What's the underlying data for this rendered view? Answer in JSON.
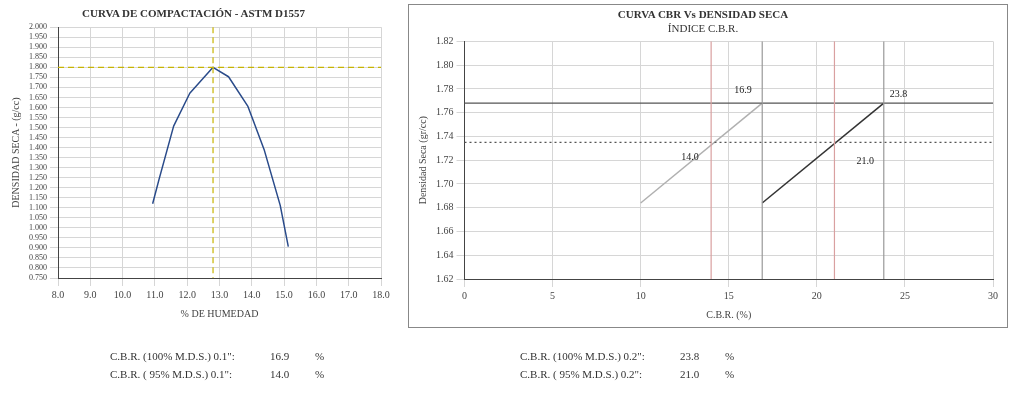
{
  "chart_data": [
    {
      "type": "line",
      "title": "CURVA DE COMPACTACIÓN - ASTM D1557",
      "xlabel": "% DE HUMEDAD",
      "ylabel": "DENSIDAD SECA - (g/cc)",
      "series": [
        {
          "color": "#2a4b8a",
          "x": [
            10.93,
            11.13,
            11.58,
            12.08,
            12.8,
            13.28,
            13.88,
            14.38,
            14.88,
            15.13
          ],
          "values": [
            1.12,
            1.243,
            1.507,
            1.671,
            1.8,
            1.753,
            1.605,
            1.391,
            1.112,
            0.906
          ]
        }
      ],
      "xlim": [
        8,
        18
      ],
      "xticks": [
        {
          "value": 8,
          "label": "8.0"
        },
        {
          "value": 9,
          "label": "9.0"
        },
        {
          "value": 10,
          "label": "10.0"
        },
        {
          "value": 11,
          "label": "11.0"
        },
        {
          "value": 12,
          "label": "12.0"
        },
        {
          "value": 13,
          "label": "13.0"
        },
        {
          "value": 14,
          "label": "14.0"
        },
        {
          "value": 15,
          "label": "15.0"
        },
        {
          "value": 16,
          "label": "16.0"
        },
        {
          "value": 17,
          "label": "17.0"
        },
        {
          "value": 18,
          "label": "18.0"
        }
      ],
      "ylim": [
        0.75,
        2.0
      ],
      "yticks": [
        {
          "value": 0.75,
          "label": "0.750"
        },
        {
          "value": 0.8,
          "label": "0.800"
        },
        {
          "value": 0.85,
          "label": "0.850"
        },
        {
          "value": 0.9,
          "label": "0.900"
        },
        {
          "value": 0.95,
          "label": "0.950"
        },
        {
          "value": 1.0,
          "label": "1.000"
        },
        {
          "value": 1.05,
          "label": "1.050"
        },
        {
          "value": 1.1,
          "label": "1.100"
        },
        {
          "value": 1.15,
          "label": "1.150"
        },
        {
          "value": 1.2,
          "label": "1.200"
        },
        {
          "value": 1.25,
          "label": "1.250"
        },
        {
          "value": 1.3,
          "label": "1.300"
        },
        {
          "value": 1.35,
          "label": "1.350"
        },
        {
          "value": 1.4,
          "label": "1.400"
        },
        {
          "value": 1.45,
          "label": "1.450"
        },
        {
          "value": 1.5,
          "label": "1.500"
        },
        {
          "value": 1.55,
          "label": "1.550"
        },
        {
          "value": 1.6,
          "label": "1.600"
        },
        {
          "value": 1.65,
          "label": "1.650"
        },
        {
          "value": 1.7,
          "label": "1.700"
        },
        {
          "value": 1.75,
          "label": "1.750"
        },
        {
          "value": 1.8,
          "label": "1.800"
        },
        {
          "value": 1.85,
          "label": "1.850"
        },
        {
          "value": 1.9,
          "label": "1.900"
        },
        {
          "value": 1.95,
          "label": "1.950"
        },
        {
          "value": 2.0,
          "label": "2.000"
        }
      ],
      "ref_lines": [
        {
          "axis": "x",
          "value": 12.8,
          "color": "#c8b400",
          "line_style": "dashed"
        },
        {
          "axis": "y",
          "value": 1.8,
          "color": "#c8b400",
          "line_style": "dashed"
        }
      ],
      "grid": true,
      "legend": false,
      "marker": "none",
      "line_style": "solid",
      "annotations": [
        "C.B.R. (100% M.D.S.) 0.1\":",
        "16.9",
        "%",
        "C.B.R. ( 95% M.D.S.) 0.1\":",
        "14.0",
        "%"
      ]
    },
    {
      "type": "line",
      "title": "CURVA CBR Vs DENSIDAD SECA",
      "subtitle": "ÍNDICE C.B.R.",
      "xlabel": "C.B.R. (%)",
      "ylabel": "Densidad Seca (gr/cc)",
      "series": [
        {
          "color": "#b0b0b0",
          "x": [
            10.0,
            16.9
          ],
          "values": [
            1.684,
            1.768
          ]
        },
        {
          "color": "#333333",
          "x": [
            16.9,
            23.8
          ],
          "values": [
            1.684,
            1.768
          ]
        }
      ],
      "xlim": [
        0,
        30
      ],
      "xticks": [
        0,
        5,
        10,
        15,
        20,
        25,
        30
      ],
      "ylim": [
        1.62,
        1.82
      ],
      "yticks": [
        {
          "value": 1.62,
          "label": "1.62"
        },
        {
          "value": 1.64,
          "label": "1.64"
        },
        {
          "value": 1.66,
          "label": "1.66"
        },
        {
          "value": 1.68,
          "label": "1.68"
        },
        {
          "value": 1.7,
          "label": "1.70"
        },
        {
          "value": 1.72,
          "label": "1.72"
        },
        {
          "value": 1.74,
          "label": "1.74"
        },
        {
          "value": 1.76,
          "label": "1.76"
        },
        {
          "value": 1.78,
          "label": "1.78"
        },
        {
          "value": 1.8,
          "label": "1.80"
        },
        {
          "value": 1.82,
          "label": "1.82"
        }
      ],
      "ref_lines": [
        {
          "axis": "y",
          "value": 1.768,
          "color": "#555555"
        },
        {
          "axis": "y",
          "value": 1.735,
          "color": "#555555",
          "line_style": "dotted"
        },
        {
          "axis": "x",
          "value": 14.0,
          "color": "#d9a0a0"
        },
        {
          "axis": "x",
          "value": 16.9,
          "color": "#999999"
        },
        {
          "axis": "x",
          "value": 21.0,
          "color": "#d9a0a0"
        },
        {
          "axis": "x",
          "value": 23.8,
          "color": "#999999"
        }
      ],
      "grid": true,
      "legend": false,
      "marker": "none",
      "line_style": "solid",
      "annotations": [
        {
          "text": "16.9",
          "x": 16.9,
          "y": 1.768
        },
        {
          "text": "23.8",
          "x": 23.8,
          "y": 1.768
        },
        {
          "text": "14.0",
          "x": 14.0,
          "y": 1.735
        },
        {
          "text": "21.0",
          "x": 21.0,
          "y": 1.735
        },
        "C.B.R. (100% M.D.S.) 0.2\":",
        "23.8",
        "%",
        "C.B.R. ( 95% M.D.S.) 0.2\":",
        "21.0",
        "%"
      ]
    }
  ]
}
